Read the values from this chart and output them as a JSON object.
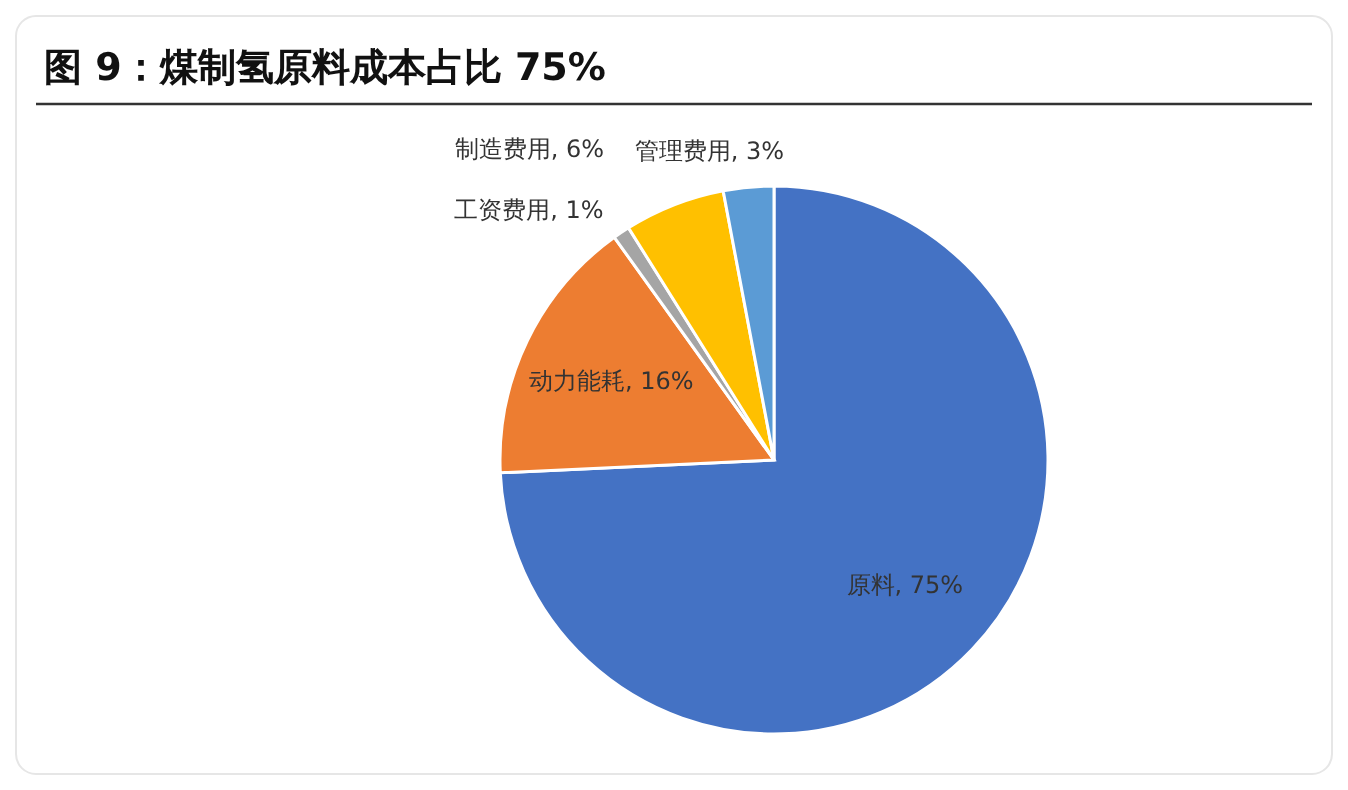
{
  "chart_data": {
    "type": "pie",
    "title": "图 9：煤制氢原料成本占比 75%",
    "categories": [
      "原料",
      "动力能耗",
      "工资费用",
      "制造费用",
      "管理费用"
    ],
    "values": [
      75,
      16,
      1,
      6,
      3
    ],
    "colors": [
      "#4472c4",
      "#ed7d31",
      "#a5a5a5",
      "#ffc000",
      "#5b9bd5"
    ],
    "value_labels": [
      ", 75%",
      ", 16%",
      ", 1%",
      ", 6%",
      ", 3%"
    ]
  }
}
